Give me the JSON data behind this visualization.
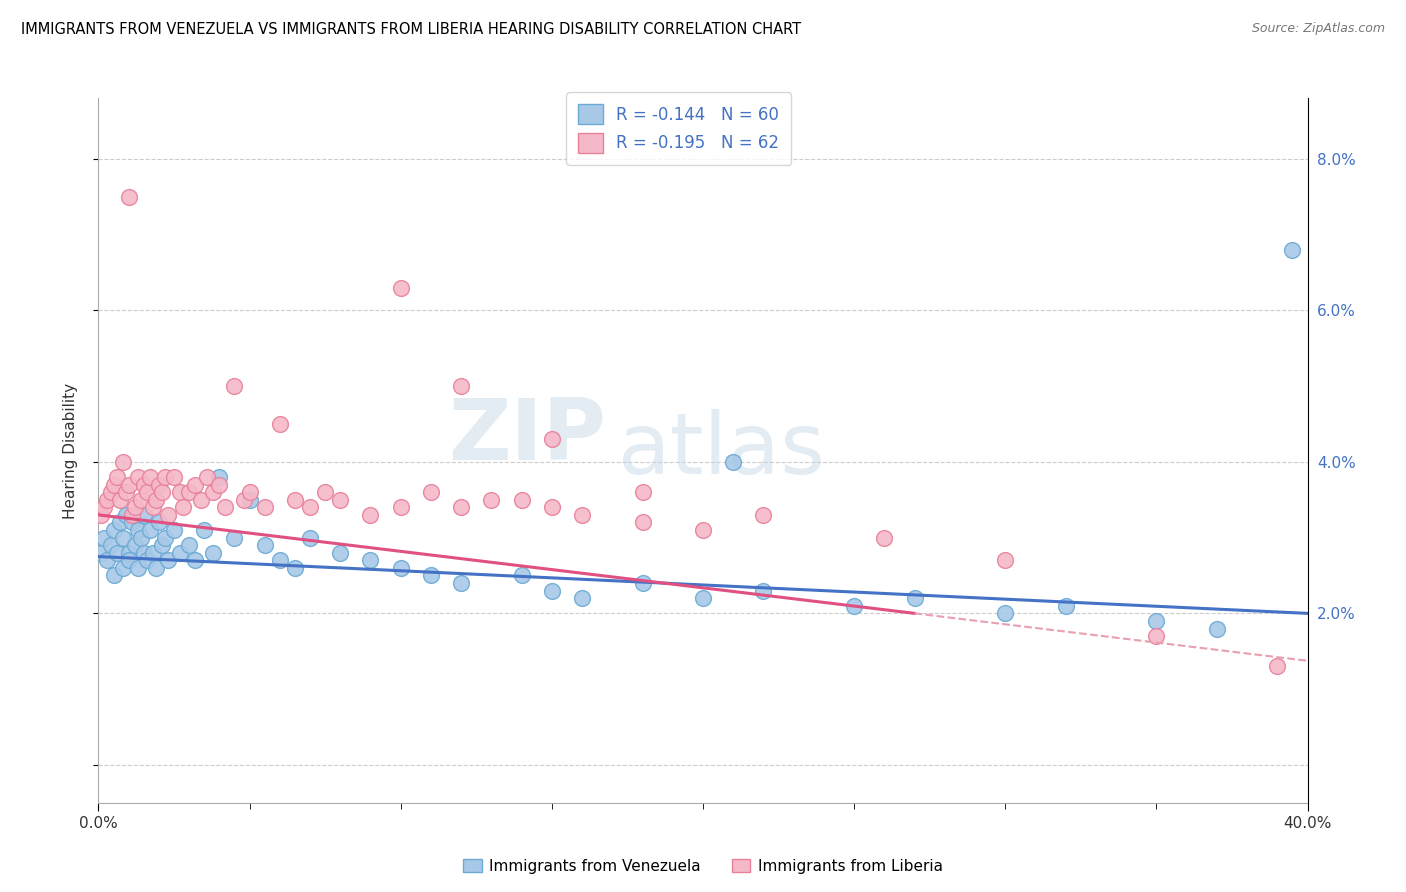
{
  "title": "IMMIGRANTS FROM VENEZUELA VS IMMIGRANTS FROM LIBERIA HEARING DISABILITY CORRELATION CHART",
  "source": "Source: ZipAtlas.com",
  "ylabel": "Hearing Disability",
  "legend_label1": "Immigrants from Venezuela",
  "legend_label2": "Immigrants from Liberia",
  "r1": -0.144,
  "n1": 60,
  "r2": -0.195,
  "n2": 62,
  "color_venezuela": "#a8c8e8",
  "color_liberia": "#f5b8c8",
  "color_venezuela_edge": "#6aaad4",
  "color_liberia_edge": "#e8809a",
  "trendline1_color": "#4472c4",
  "trendline2_solid_color": "#e05080",
  "trendline2_dash_color": "#e8a0b0",
  "watermark_zip": "ZIP",
  "watermark_atlas": "atlas",
  "x_min": 0.0,
  "x_max": 0.4,
  "y_min": -0.005,
  "y_max": 0.088,
  "venezuela_x": [
    0.001,
    0.002,
    0.003,
    0.004,
    0.005,
    0.005,
    0.006,
    0.007,
    0.008,
    0.008,
    0.009,
    0.01,
    0.01,
    0.011,
    0.012,
    0.013,
    0.013,
    0.014,
    0.015,
    0.015,
    0.016,
    0.017,
    0.018,
    0.019,
    0.02,
    0.021,
    0.022,
    0.023,
    0.025,
    0.027,
    0.03,
    0.032,
    0.035,
    0.038,
    0.04,
    0.045,
    0.05,
    0.055,
    0.06,
    0.065,
    0.07,
    0.08,
    0.09,
    0.1,
    0.11,
    0.12,
    0.14,
    0.15,
    0.16,
    0.18,
    0.2,
    0.22,
    0.25,
    0.27,
    0.3,
    0.32,
    0.35,
    0.37,
    0.395,
    0.21
  ],
  "venezuela_y": [
    0.028,
    0.03,
    0.027,
    0.029,
    0.031,
    0.025,
    0.028,
    0.032,
    0.026,
    0.03,
    0.033,
    0.028,
    0.027,
    0.032,
    0.029,
    0.031,
    0.026,
    0.03,
    0.033,
    0.028,
    0.027,
    0.031,
    0.028,
    0.026,
    0.032,
    0.029,
    0.03,
    0.027,
    0.031,
    0.028,
    0.029,
    0.027,
    0.031,
    0.028,
    0.038,
    0.03,
    0.035,
    0.029,
    0.027,
    0.026,
    0.03,
    0.028,
    0.027,
    0.026,
    0.025,
    0.024,
    0.025,
    0.023,
    0.022,
    0.024,
    0.022,
    0.023,
    0.021,
    0.022,
    0.02,
    0.021,
    0.019,
    0.018,
    0.068,
    0.04
  ],
  "liberia_x": [
    0.001,
    0.002,
    0.003,
    0.004,
    0.005,
    0.006,
    0.007,
    0.008,
    0.009,
    0.01,
    0.01,
    0.011,
    0.012,
    0.013,
    0.014,
    0.015,
    0.016,
    0.017,
    0.018,
    0.019,
    0.02,
    0.021,
    0.022,
    0.023,
    0.025,
    0.027,
    0.028,
    0.03,
    0.032,
    0.034,
    0.036,
    0.038,
    0.04,
    0.042,
    0.045,
    0.048,
    0.05,
    0.055,
    0.06,
    0.065,
    0.07,
    0.075,
    0.08,
    0.09,
    0.1,
    0.11,
    0.12,
    0.13,
    0.14,
    0.15,
    0.16,
    0.18,
    0.2,
    0.1,
    0.12,
    0.15,
    0.18,
    0.22,
    0.26,
    0.3,
    0.35,
    0.39
  ],
  "liberia_y": [
    0.033,
    0.034,
    0.035,
    0.036,
    0.037,
    0.038,
    0.035,
    0.04,
    0.036,
    0.037,
    0.075,
    0.033,
    0.034,
    0.038,
    0.035,
    0.037,
    0.036,
    0.038,
    0.034,
    0.035,
    0.037,
    0.036,
    0.038,
    0.033,
    0.038,
    0.036,
    0.034,
    0.036,
    0.037,
    0.035,
    0.038,
    0.036,
    0.037,
    0.034,
    0.05,
    0.035,
    0.036,
    0.034,
    0.045,
    0.035,
    0.034,
    0.036,
    0.035,
    0.033,
    0.034,
    0.036,
    0.034,
    0.035,
    0.035,
    0.034,
    0.033,
    0.032,
    0.031,
    0.063,
    0.05,
    0.043,
    0.036,
    0.033,
    0.03,
    0.027,
    0.017,
    0.013
  ]
}
